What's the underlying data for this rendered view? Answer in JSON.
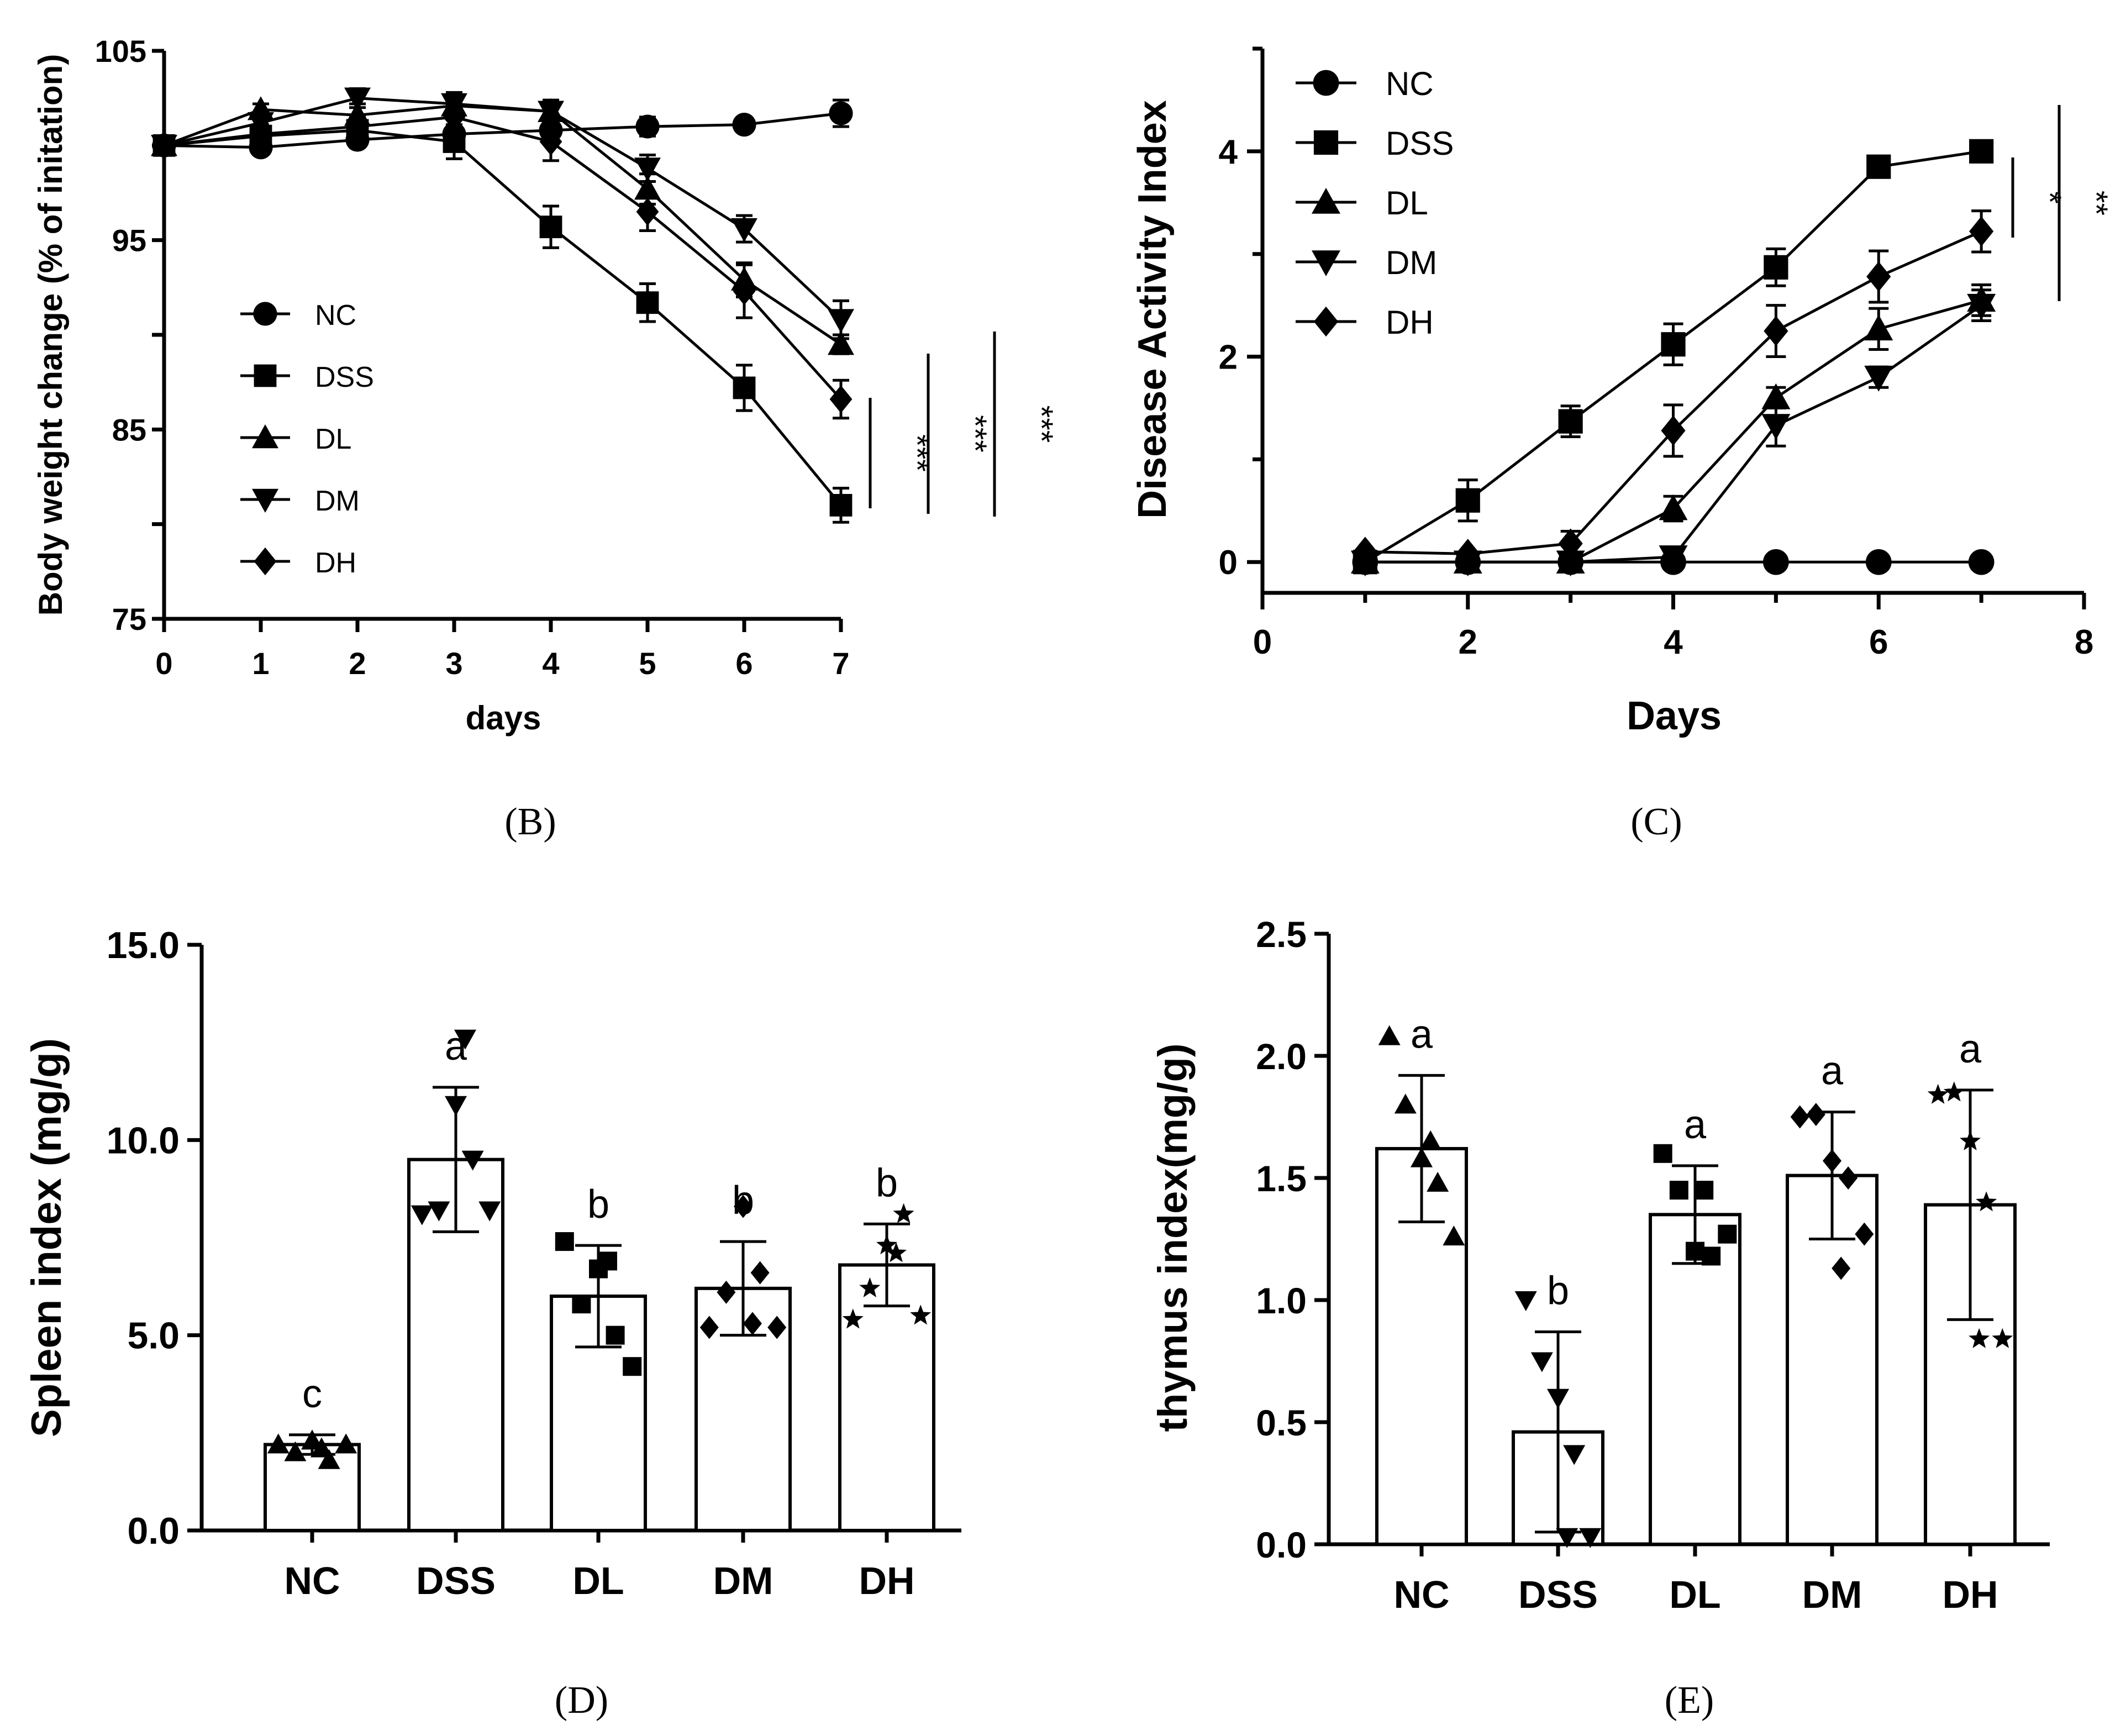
{
  "chart_data": [
    {
      "id": "B",
      "type": "line",
      "panel_label": "(B)",
      "xlabel": "days",
      "ylabel": "Body weight change (% of initation)",
      "xlim": [
        0,
        7
      ],
      "ylim": [
        75,
        105
      ],
      "x_ticks": [
        "0",
        "1",
        "2",
        "3",
        "4",
        "5",
        "6",
        "7"
      ],
      "y_ticks": [
        "75",
        "85",
        "95",
        "105"
      ],
      "legend": [
        "NC",
        "DSS",
        "DL",
        "DM",
        "DH"
      ],
      "series": [
        {
          "name": "NC",
          "marker": "circle",
          "x": [
            0,
            1,
            2,
            3,
            4,
            5,
            6,
            7
          ],
          "y": [
            100,
            99.9,
            100.3,
            100.6,
            100.8,
            101.0,
            101.1,
            101.7
          ],
          "err": [
            0.2,
            0.3,
            0.4,
            0.4,
            0.5,
            0.5,
            0.3,
            0.7
          ]
        },
        {
          "name": "DSS",
          "marker": "square",
          "x": [
            0,
            1,
            2,
            3,
            4,
            5,
            6,
            7
          ],
          "y": [
            100,
            100.5,
            100.8,
            100.2,
            95.7,
            91.7,
            87.2,
            81.0
          ],
          "err": [
            0.2,
            0.4,
            0.8,
            0.9,
            1.1,
            1.0,
            1.2,
            0.9
          ]
        },
        {
          "name": "DL",
          "marker": "triangle-up",
          "x": [
            0,
            1,
            2,
            3,
            4,
            5,
            6,
            7
          ],
          "y": [
            100,
            101.9,
            101.6,
            102.1,
            101.8,
            97.7,
            92.9,
            89.5
          ],
          "err": [
            0.2,
            0.3,
            0.6,
            0.5,
            0.5,
            0.8,
            0.9,
            0.5
          ]
        },
        {
          "name": "DM",
          "marker": "triangle-down",
          "x": [
            0,
            1,
            2,
            3,
            4,
            5,
            6,
            7
          ],
          "y": [
            100,
            101.2,
            102.5,
            102.2,
            101.8,
            98.8,
            95.6,
            90.8
          ],
          "err": [
            0.2,
            0.4,
            0.5,
            0.6,
            0.6,
            0.7,
            0.7,
            1.0
          ]
        },
        {
          "name": "DH",
          "marker": "diamond",
          "x": [
            0,
            1,
            2,
            3,
            4,
            5,
            6,
            7
          ],
          "y": [
            100,
            100.6,
            101.0,
            101.5,
            100.2,
            96.5,
            92.3,
            86.6
          ],
          "err": [
            0.2,
            0.5,
            0.6,
            0.7,
            1.0,
            1.0,
            1.4,
            1.0
          ]
        }
      ],
      "significance": [
        "***",
        "***",
        "***"
      ]
    },
    {
      "id": "C",
      "type": "line",
      "panel_label": "(C)",
      "xlabel": "Days",
      "ylabel": "Disease Activity Index",
      "xlim": [
        0,
        8
      ],
      "ylim": [
        -0.3,
        5
      ],
      "x_ticks": [
        "0",
        "2",
        "4",
        "6",
        "8"
      ],
      "y_ticks": [
        "0",
        "2",
        "4"
      ],
      "legend": [
        "NC",
        "DSS",
        "DL",
        "DM",
        "DH"
      ],
      "series": [
        {
          "name": "NC",
          "marker": "circle",
          "x": [
            1,
            2,
            3,
            4,
            5,
            6,
            7
          ],
          "y": [
            0,
            0,
            0,
            0,
            0,
            0,
            0
          ],
          "err": [
            0,
            0,
            0,
            0,
            0,
            0,
            0
          ]
        },
        {
          "name": "DSS",
          "marker": "square",
          "x": [
            1,
            2,
            3,
            4,
            5,
            6,
            7
          ],
          "y": [
            0,
            0.6,
            1.37,
            2.12,
            2.87,
            3.85,
            4.0
          ],
          "err": [
            0,
            0.2,
            0.15,
            0.2,
            0.18,
            0.05,
            0
          ]
        },
        {
          "name": "DL",
          "marker": "triangle-up",
          "x": [
            1,
            2,
            3,
            4,
            5,
            6,
            7
          ],
          "y": [
            0,
            0,
            0,
            0.52,
            1.6,
            2.27,
            2.55
          ],
          "err": [
            0,
            0,
            0,
            0.12,
            0.1,
            0.2,
            0.15
          ]
        },
        {
          "name": "DM",
          "marker": "triangle-down",
          "x": [
            1,
            2,
            3,
            4,
            5,
            6,
            7
          ],
          "y": [
            0,
            0,
            0,
            0.05,
            1.33,
            1.8,
            2.5
          ],
          "err": [
            0,
            0,
            0,
            0.05,
            0.2,
            0.1,
            0.15
          ]
        },
        {
          "name": "DH",
          "marker": "diamond",
          "x": [
            1,
            2,
            3,
            4,
            5,
            6,
            7
          ],
          "y": [
            0.1,
            0.08,
            0.18,
            1.28,
            2.25,
            2.78,
            3.22
          ],
          "err": [
            0,
            0,
            0.12,
            0.25,
            0.25,
            0.25,
            0.2
          ]
        }
      ],
      "significance": [
        "*",
        "**"
      ]
    },
    {
      "id": "D",
      "type": "bar",
      "panel_label": "(D)",
      "xlabel": "",
      "ylabel": "Spleen index (mg/g)",
      "ylim": [
        0,
        15
      ],
      "y_ticks": [
        "0.0",
        "5.0",
        "10.0",
        "15.0"
      ],
      "categories": [
        "NC",
        "DSS",
        "DL",
        "DM",
        "DH"
      ],
      "values": [
        2.2,
        9.5,
        6.0,
        6.2,
        6.8
      ],
      "err": [
        0.25,
        1.85,
        1.3,
        1.2,
        1.05
      ],
      "letters": [
        "c",
        "a",
        "b",
        "b",
        "b"
      ],
      "markers": [
        "triangle-up",
        "triangle-down",
        "square",
        "diamond",
        "star"
      ],
      "points": [
        [
          2.2,
          2.0,
          2.3,
          1.8,
          2.2,
          2.1
        ],
        [
          8.1,
          8.2,
          10.9,
          9.5,
          8.2,
          12.6
        ],
        [
          7.4,
          5.8,
          6.7,
          5.0,
          4.2,
          6.9
        ],
        [
          5.2,
          6.1,
          8.3,
          6.6,
          5.2,
          5.3
        ],
        [
          5.4,
          6.2,
          7.3,
          8.1,
          5.5,
          7.1
        ]
      ]
    },
    {
      "id": "E",
      "type": "bar",
      "panel_label": "(E)",
      "xlabel": "",
      "ylabel": "thymus index(mg/g)",
      "ylim": [
        0,
        2.5
      ],
      "y_ticks": [
        "0.0",
        "0.5",
        "1.0",
        "1.5",
        "2.0",
        "2.5"
      ],
      "categories": [
        "NC",
        "DSS",
        "DL",
        "DM",
        "DH"
      ],
      "values": [
        1.62,
        0.46,
        1.35,
        1.51,
        1.39
      ],
      "err": [
        0.3,
        0.41,
        0.2,
        0.26,
        0.47
      ],
      "letters": [
        "a",
        "b",
        "a",
        "a",
        "a"
      ],
      "markers": [
        "triangle-up",
        "triangle-down",
        "square",
        "diamond",
        "star"
      ],
      "points": [
        [
          2.08,
          1.8,
          1.58,
          1.48,
          1.26,
          1.65
        ],
        [
          1.0,
          0.75,
          0.6,
          0.37,
          0.03,
          0.03
        ],
        [
          1.6,
          1.45,
          1.2,
          1.18,
          1.27,
          1.45
        ],
        [
          1.75,
          1.76,
          1.57,
          1.5,
          1.27,
          1.13
        ],
        [
          1.84,
          1.85,
          1.65,
          1.4,
          0.84,
          0.84
        ]
      ]
    }
  ]
}
